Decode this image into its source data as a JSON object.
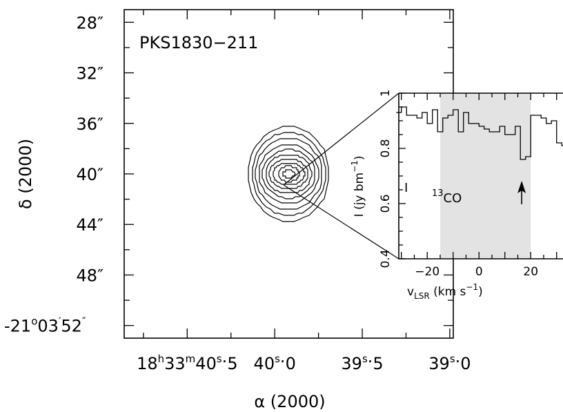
{
  "chart_data": [
    {
      "type": "contour",
      "source_label": "PKS1830−211",
      "xlabel": "α (2000)",
      "ylabel": "δ (2000)",
      "x_ticks": [
        {
          "h": "18",
          "m": "33",
          "s": "40",
          "f": "5",
          "pre": "",
          "value": 40.5
        },
        {
          "h": "",
          "m": "",
          "s": "40",
          "f": "0",
          "pre": "",
          "value": 40.0
        },
        {
          "h": "",
          "m": "",
          "s": "39",
          "f": "5",
          "pre": "",
          "value": 39.5
        },
        {
          "h": "",
          "m": "",
          "s": "39",
          "f": "0",
          "pre": "",
          "value": 39.0
        }
      ],
      "y_ticks": [
        {
          "label": "28″",
          "value": 28
        },
        {
          "label": "32″",
          "value": 32
        },
        {
          "label": "36″",
          "value": 36
        },
        {
          "label": "40″",
          "value": 40
        },
        {
          "label": "44″",
          "value": 44
        },
        {
          "label": "48″",
          "value": 48
        }
      ],
      "y_bottom_label": {
        "deg": "-21",
        "arcmin": "03",
        "arcsec": "52",
        "value": 52
      },
      "xlim": [
        40.86,
        38.98
      ],
      "ylim": [
        53.0,
        27.0
      ],
      "source_center": {
        "ra_sec": 39.92,
        "dec_arcsec": 40.0
      },
      "contours_halfsize_arcsec": [
        [
          0.23,
          3.8
        ],
        [
          0.21,
          3.3
        ],
        [
          0.19,
          2.8
        ],
        [
          0.17,
          2.35
        ],
        [
          0.15,
          1.95
        ],
        [
          0.13,
          1.55
        ],
        [
          0.11,
          1.2
        ],
        [
          0.09,
          0.9
        ],
        [
          0.06,
          0.6
        ],
        [
          0.035,
          0.3
        ]
      ]
    },
    {
      "type": "step",
      "xlabel_main": "v",
      "xlabel_sub": "LSR",
      "xlabel_units": " (km s",
      "xlabel_exp": "−1",
      "xlabel_close": ")",
      "ylabel": "I (jy bm",
      "ylabel_exp": "−1",
      "ylabel_close": ")",
      "x_tick_labels": [
        {
          "label": "−20",
          "value": -20
        },
        {
          "label": "0",
          "value": 0
        },
        {
          "label": "20",
          "value": 20
        }
      ],
      "y_tick_labels": [
        {
          "label": "0.4",
          "value": 0.4
        },
        {
          "label": "0.6",
          "value": 0.6
        },
        {
          "label": "0.8",
          "value": 0.8
        },
        {
          "label": "1",
          "value": 1
        }
      ],
      "xlim": [
        -31,
        33
      ],
      "ylim": [
        0.4,
        1.0
      ],
      "shaded_region_kms": [
        -15,
        20
      ],
      "panel_label": "I",
      "line_label_isotope": "13",
      "line_label_molecule": "CO",
      "arrow_at_kms": 16.5,
      "spectrum": {
        "x": [
          -31,
          -29,
          -27,
          -25,
          -23,
          -21,
          -19,
          -17,
          -15,
          -13,
          -11,
          -9,
          -7,
          -5,
          -3,
          -1,
          1,
          3,
          5,
          7,
          9,
          11,
          13,
          15,
          17,
          19,
          21,
          23,
          25,
          27,
          29,
          31,
          33
        ],
        "y": [
          0.93,
          0.95,
          0.92,
          0.92,
          0.91,
          0.93,
          0.89,
          0.94,
          0.86,
          0.91,
          0.92,
          0.94,
          0.86,
          0.93,
          0.89,
          0.89,
          0.88,
          0.87,
          0.86,
          0.86,
          0.88,
          0.85,
          0.85,
          0.88,
          0.76,
          0.77,
          0.92,
          0.92,
          0.91,
          0.89,
          0.9,
          0.82,
          0.81
        ]
      }
    }
  ]
}
